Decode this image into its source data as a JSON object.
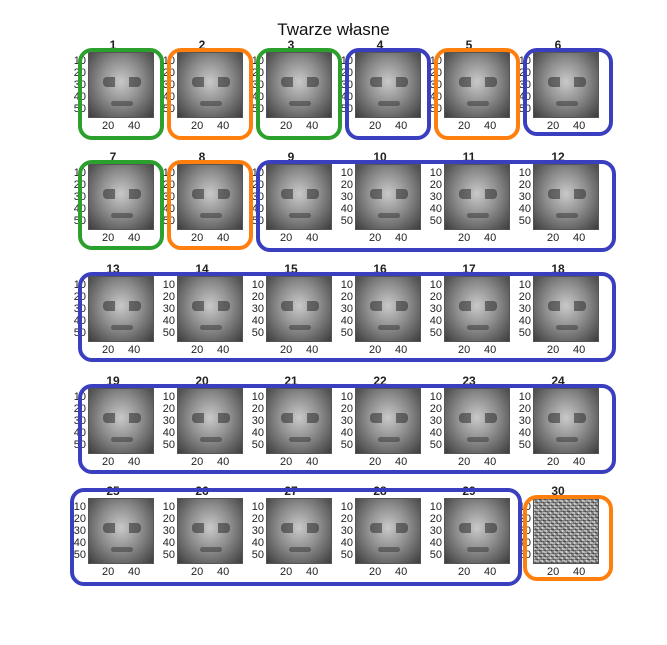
{
  "title": "Twarze własne",
  "y_ticks": [
    "10",
    "20",
    "30",
    "40",
    "50"
  ],
  "x_ticks": [
    "20",
    "40"
  ],
  "colors": {
    "green": "#2ca02c",
    "orange": "#ff7f0e",
    "blue": "#3a3fbf"
  },
  "panels": [
    {
      "num": "1",
      "highlight": "green"
    },
    {
      "num": "2",
      "highlight": "orange"
    },
    {
      "num": "3",
      "highlight": "green"
    },
    {
      "num": "4",
      "highlight": "blue"
    },
    {
      "num": "5",
      "highlight": "orange"
    },
    {
      "num": "6",
      "highlight": "blue"
    },
    {
      "num": "7",
      "highlight": "green"
    },
    {
      "num": "8",
      "highlight": "orange"
    },
    {
      "num": "9",
      "highlight": "blue"
    },
    {
      "num": "10",
      "highlight": "blue"
    },
    {
      "num": "11",
      "highlight": "blue"
    },
    {
      "num": "12",
      "highlight": "blue"
    },
    {
      "num": "13",
      "highlight": "blue"
    },
    {
      "num": "14",
      "highlight": "blue"
    },
    {
      "num": "15",
      "highlight": "blue"
    },
    {
      "num": "16",
      "highlight": "blue"
    },
    {
      "num": "17",
      "highlight": "blue"
    },
    {
      "num": "18",
      "highlight": "blue"
    },
    {
      "num": "19",
      "highlight": "blue"
    },
    {
      "num": "20",
      "highlight": "blue"
    },
    {
      "num": "21",
      "highlight": "blue"
    },
    {
      "num": "22",
      "highlight": "blue"
    },
    {
      "num": "23",
      "highlight": "blue"
    },
    {
      "num": "24",
      "highlight": "blue"
    },
    {
      "num": "25",
      "highlight": "blue"
    },
    {
      "num": "26",
      "highlight": "blue"
    },
    {
      "num": "27",
      "highlight": "blue"
    },
    {
      "num": "28",
      "highlight": "blue"
    },
    {
      "num": "29",
      "highlight": "blue"
    },
    {
      "num": "30",
      "highlight": "orange"
    }
  ]
}
